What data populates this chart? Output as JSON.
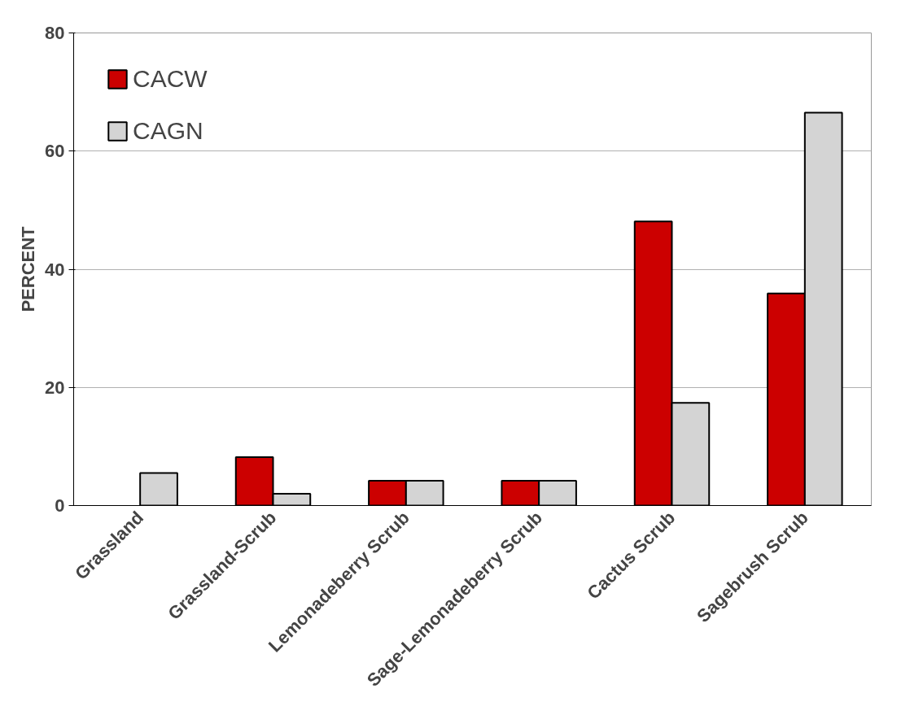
{
  "chart_data": {
    "type": "bar",
    "ylabel": "PERCENT",
    "categories": [
      "Grassland",
      "Grassland-Scrub",
      "Lemonadeberry Scrub",
      "Sage-Lemonadeberry Scrub",
      "Cactus Scrub",
      "Sagebrush Scrub"
    ],
    "series": [
      {
        "name": "CACW",
        "color": "#cc0000",
        "values": [
          null,
          8.2,
          4.2,
          4.2,
          48.1,
          35.9
        ]
      },
      {
        "name": "CAGN",
        "color": "#d4d4d4",
        "values": [
          5.5,
          2.0,
          4.2,
          4.2,
          17.4,
          66.5
        ]
      }
    ],
    "ylim": [
      0,
      80
    ],
    "yticks": [
      0,
      20,
      40,
      60,
      80
    ],
    "grid": "y",
    "legend": "top left"
  }
}
